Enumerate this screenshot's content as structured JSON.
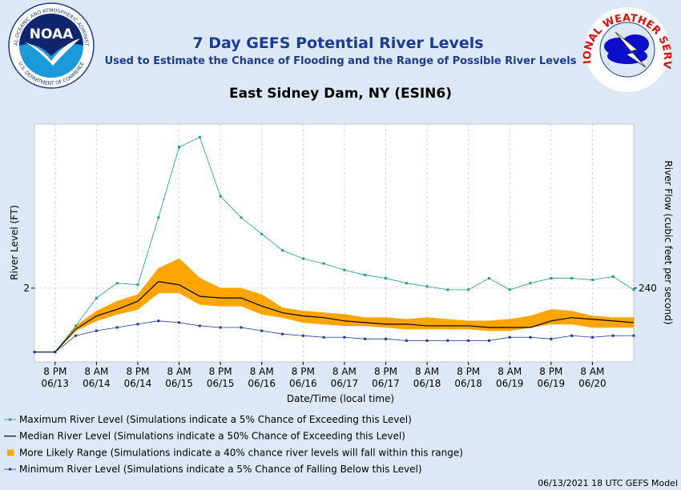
{
  "logos": {
    "noaa": {
      "name": "NOAA",
      "ring_top": "NATIONAL OCEANIC AND ATMOSPHERIC ADMINISTRATION",
      "ring_bottom": "U.S. DEPARTMENT OF COMMERCE"
    },
    "nws": {
      "ring": "NATIONAL WEATHER SERVICE"
    }
  },
  "chart_data": {
    "type": "line",
    "title": "7 Day GEFS Potential River Levels",
    "subtitle": "Used to Estimate the Chance of Flooding and the Range of Possible River Levels",
    "station": "East Sidney Dam, NY (ESIN6)",
    "time_labels": [
      null,
      "8 PM",
      null,
      "8 AM",
      null,
      "8 PM",
      null,
      "8 AM",
      null,
      "8 PM",
      null,
      "8 AM",
      null,
      "8 PM",
      null,
      "8 AM",
      null,
      "8 PM",
      null,
      "8 AM",
      null,
      "8 PM",
      null,
      "8 AM",
      null,
      "8 PM",
      null,
      "8 AM",
      null,
      null
    ],
    "date_labels": [
      null,
      "06/13",
      null,
      "06/14",
      null,
      "06/14",
      null,
      "06/15",
      null,
      "06/15",
      null,
      "06/16",
      null,
      "06/16",
      null,
      "06/17",
      null,
      "06/17",
      null,
      "06/18",
      null,
      "06/18",
      null,
      "06/19",
      null,
      "06/19",
      null,
      "06/20",
      null,
      null
    ],
    "xlabel": "Date/Time (local time)",
    "ylabel": "River Level (FT)",
    "y2label": "River Flow (cubic feet per second)",
    "ylim": [
      1.55,
      3.0
    ],
    "yticks": [
      2
    ],
    "y2lim": [
      186,
      360
    ],
    "y2ticks": [
      240
    ],
    "grid": true,
    "series": [
      {
        "name": "Maximum River Level (Simulations indicate a 5% Chance of Exceeding this Level)",
        "color": "#1f9a9a",
        "marker": "square",
        "values": [
          1.61,
          1.61,
          1.77,
          1.94,
          2.03,
          2.02,
          2.43,
          2.86,
          2.92,
          2.56,
          2.43,
          2.33,
          2.23,
          2.18,
          2.15,
          2.11,
          2.08,
          2.06,
          2.03,
          2.01,
          1.99,
          1.99,
          2.06,
          1.99,
          2.03,
          2.06,
          2.06,
          2.05,
          2.07,
          1.99
        ]
      },
      {
        "name": "Median River Level (Simulations indicate a 50% Chance of Exceeding this Level)",
        "color": "#000000",
        "values": [
          1.61,
          1.61,
          1.75,
          1.83,
          1.87,
          1.92,
          2.04,
          2.02,
          1.95,
          1.94,
          1.94,
          1.89,
          1.85,
          1.83,
          1.82,
          1.8,
          1.79,
          1.78,
          1.78,
          1.77,
          1.77,
          1.77,
          1.76,
          1.76,
          1.76,
          1.8,
          1.82,
          1.81,
          1.8,
          1.79
        ]
      },
      {
        "name": "More Likely Range (Simulations indicate a 40% chance river levels will fall within this range)",
        "color": "#ffa500",
        "kind": "range",
        "high": [
          1.61,
          1.61,
          1.77,
          1.86,
          1.92,
          1.96,
          2.12,
          2.18,
          2.06,
          2.0,
          2.0,
          1.96,
          1.88,
          1.86,
          1.85,
          1.84,
          1.82,
          1.82,
          1.81,
          1.82,
          1.81,
          1.8,
          1.8,
          1.81,
          1.83,
          1.87,
          1.86,
          1.83,
          1.82,
          1.82
        ],
        "low": [
          1.61,
          1.61,
          1.74,
          1.8,
          1.84,
          1.87,
          1.97,
          1.97,
          1.9,
          1.89,
          1.89,
          1.84,
          1.82,
          1.79,
          1.78,
          1.77,
          1.77,
          1.76,
          1.75,
          1.75,
          1.75,
          1.75,
          1.74,
          1.74,
          1.76,
          1.78,
          1.78,
          1.76,
          1.76,
          1.76
        ]
      },
      {
        "name": "Minimum River Level (Simulations indicate a 5% Chance of Falling Below this Level)",
        "color": "#1a3a9c",
        "marker": "square",
        "values": [
          1.61,
          1.61,
          1.71,
          1.74,
          1.76,
          1.78,
          1.8,
          1.79,
          1.77,
          1.76,
          1.76,
          1.74,
          1.72,
          1.71,
          1.7,
          1.7,
          1.69,
          1.69,
          1.68,
          1.68,
          1.68,
          1.68,
          1.68,
          1.7,
          1.7,
          1.69,
          1.71,
          1.7,
          1.71,
          1.71
        ]
      }
    ],
    "footer": "06/13/2021 18 UTC GEFS Model"
  }
}
